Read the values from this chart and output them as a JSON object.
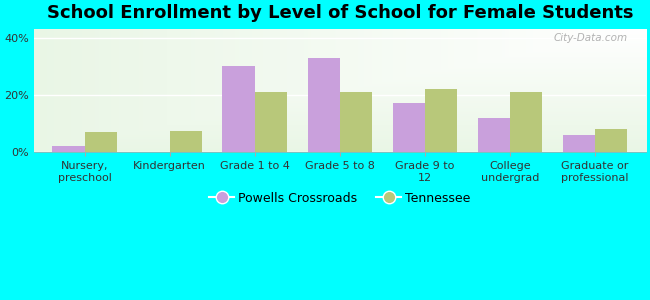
{
  "title": "School Enrollment by Level of School for Female Students",
  "categories": [
    "Nursery,\npreschool",
    "Kindergarten",
    "Grade 1 to 4",
    "Grade 5 to 8",
    "Grade 9 to\n12",
    "College\nundergrad",
    "Graduate or\nprofessional"
  ],
  "powells": [
    2.0,
    0.0,
    30.0,
    33.0,
    17.0,
    12.0,
    6.0
  ],
  "tennessee": [
    7.0,
    7.5,
    21.0,
    21.0,
    22.0,
    21.0,
    8.0
  ],
  "powells_color": "#c9a0dc",
  "tennessee_color": "#b8c87a",
  "background_color": "#00ffff",
  "bar_width": 0.38,
  "ylim": [
    0,
    43
  ],
  "yticks": [
    0,
    20,
    40
  ],
  "ytick_labels": [
    "0%",
    "20%",
    "40%"
  ],
  "legend_powells": "Powells Crossroads",
  "legend_tennessee": "Tennessee",
  "watermark": "City-Data.com",
  "title_fontsize": 13,
  "tick_fontsize": 8,
  "legend_fontsize": 9
}
